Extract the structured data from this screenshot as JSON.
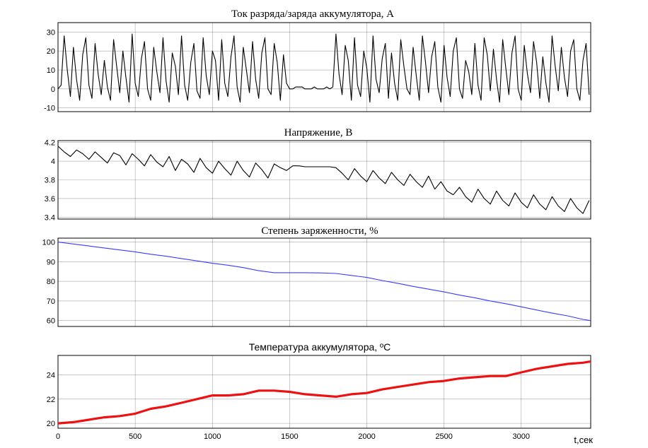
{
  "chart_data": [
    {
      "type": "line",
      "title": "Ток разряда/заряда аккумулятора, А",
      "ylim": [
        -12,
        35
      ],
      "yticks": [
        -10,
        0,
        10,
        20,
        30
      ],
      "xlim": [
        0,
        3450
      ],
      "color": "#000000",
      "series": [
        {
          "x": [
            0,
            20,
            40,
            60,
            80,
            100,
            120,
            140,
            160,
            180,
            200,
            220,
            240,
            260,
            280,
            300,
            320,
            340,
            360,
            380,
            400,
            420,
            440,
            460,
            480,
            500,
            520,
            540,
            560,
            580,
            600,
            620,
            640,
            660,
            680,
            700,
            720,
            740,
            760,
            780,
            800,
            820,
            840,
            860,
            880,
            900,
            920,
            940,
            960,
            980,
            1000,
            1020,
            1040,
            1060,
            1080,
            1100,
            1120,
            1140,
            1160,
            1180,
            1200,
            1220,
            1240,
            1260,
            1280,
            1300,
            1320,
            1340,
            1360,
            1380,
            1400,
            1420,
            1440,
            1460,
            1480,
            1500,
            1520,
            1540,
            1560,
            1580,
            1600,
            1620,
            1640,
            1660,
            1680,
            1700,
            1720,
            1740,
            1760,
            1780,
            1800,
            1820,
            1840,
            1860,
            1880,
            1900,
            1920,
            1940,
            1960,
            1980,
            2000,
            2020,
            2040,
            2060,
            2080,
            2100,
            2120,
            2140,
            2160,
            2180,
            2200,
            2220,
            2240,
            2260,
            2280,
            2300,
            2320,
            2340,
            2360,
            2380,
            2400,
            2420,
            2440,
            2460,
            2480,
            2500,
            2520,
            2540,
            2560,
            2580,
            2600,
            2620,
            2640,
            2660,
            2680,
            2700,
            2720,
            2740,
            2760,
            2780,
            2800,
            2820,
            2840,
            2860,
            2880,
            2900,
            2920,
            2940,
            2960,
            2980,
            3000,
            3020,
            3040,
            3060,
            3080,
            3100,
            3120,
            3140,
            3160,
            3180,
            3200,
            3220,
            3240,
            3260,
            3280,
            3300,
            3320,
            3340,
            3360,
            3380,
            3400,
            3420,
            3440
          ],
          "values": [
            0,
            2,
            28,
            10,
            -4,
            22,
            5,
            -6,
            18,
            27,
            2,
            -5,
            24,
            8,
            -3,
            15,
            1,
            -6,
            26,
            12,
            -2,
            20,
            6,
            -7,
            29,
            3,
            -4,
            16,
            25,
            0,
            -6,
            22,
            9,
            -2,
            27,
            4,
            -7,
            19,
            12,
            -3,
            28,
            2,
            -6,
            14,
            24,
            -1,
            -5,
            27,
            7,
            -3,
            20,
            15,
            -6,
            26,
            3,
            -4,
            17,
            28,
            1,
            -7,
            22,
            10,
            -2,
            25,
            5,
            -5,
            19,
            27,
            0,
            -3,
            24,
            14,
            -6,
            18,
            3,
            0,
            0,
            1,
            1,
            1,
            0,
            0,
            0,
            1,
            0,
            0,
            0,
            1,
            0,
            1,
            29,
            8,
            -3,
            23,
            15,
            -6,
            27,
            2,
            -4,
            20,
            11,
            -7,
            28,
            5,
            -2,
            16,
            24,
            -5,
            19,
            3,
            -6,
            26,
            12,
            0,
            -3,
            22,
            7,
            -6,
            28,
            14,
            -2,
            17,
            25,
            1,
            -7,
            23,
            6,
            -4,
            20,
            27,
            0,
            -5,
            15,
            9,
            -3,
            24,
            2,
            -6,
            27,
            18,
            -1,
            21,
            5,
            -7,
            26,
            11,
            -3,
            19,
            28,
            0,
            -6,
            23,
            8,
            -2,
            25,
            14,
            -5,
            17,
            3,
            -7,
            28,
            12,
            -1,
            22,
            6,
            -4,
            20,
            26,
            0,
            -6,
            15,
            24,
            -3
          ]
        }
      ]
    },
    {
      "type": "line",
      "title": "Напряжение, В",
      "ylim": [
        3.38,
        4.22
      ],
      "yticks": [
        3.4,
        3.6,
        3.8,
        4,
        4.2
      ],
      "xlim": [
        0,
        3450
      ],
      "color": "#000000",
      "series": [
        {
          "x": [
            0,
            40,
            80,
            120,
            160,
            200,
            240,
            280,
            320,
            360,
            400,
            440,
            480,
            520,
            560,
            600,
            640,
            680,
            720,
            760,
            800,
            840,
            880,
            920,
            960,
            1000,
            1040,
            1080,
            1120,
            1160,
            1200,
            1240,
            1280,
            1320,
            1360,
            1400,
            1440,
            1480,
            1520,
            1560,
            1600,
            1640,
            1680,
            1720,
            1760,
            1800,
            1840,
            1880,
            1920,
            1960,
            2000,
            2040,
            2080,
            2120,
            2160,
            2200,
            2240,
            2280,
            2320,
            2360,
            2400,
            2440,
            2480,
            2520,
            2560,
            2600,
            2640,
            2680,
            2720,
            2760,
            2800,
            2840,
            2880,
            2920,
            2960,
            3000,
            3040,
            3080,
            3120,
            3160,
            3200,
            3240,
            3280,
            3320,
            3360,
            3400,
            3440
          ],
          "values": [
            4.16,
            4.1,
            4.05,
            4.12,
            4.08,
            4.02,
            4.1,
            4.04,
            3.98,
            4.09,
            4.06,
            3.96,
            4.08,
            4.02,
            3.95,
            4.07,
            3.99,
            3.94,
            4.05,
            3.9,
            4.02,
            3.97,
            3.88,
            4.03,
            3.93,
            3.87,
            4.0,
            3.92,
            3.85,
            4.0,
            3.9,
            3.83,
            3.98,
            3.91,
            3.82,
            3.97,
            3.93,
            3.9,
            3.95,
            3.95,
            3.94,
            3.94,
            3.94,
            3.94,
            3.94,
            3.93,
            3.87,
            3.8,
            3.92,
            3.84,
            3.78,
            3.9,
            3.82,
            3.76,
            3.88,
            3.8,
            3.74,
            3.86,
            3.78,
            3.72,
            3.84,
            3.7,
            3.78,
            3.68,
            3.64,
            3.72,
            3.62,
            3.56,
            3.7,
            3.6,
            3.54,
            3.68,
            3.58,
            3.52,
            3.66,
            3.56,
            3.5,
            3.64,
            3.54,
            3.48,
            3.62,
            3.52,
            3.46,
            3.6,
            3.5,
            3.44,
            3.58
          ]
        }
      ]
    },
    {
      "type": "line",
      "title": "Степень заряженности, %",
      "ylim": [
        57,
        102
      ],
      "yticks": [
        60,
        70,
        80,
        90,
        100
      ],
      "xlim": [
        0,
        3450
      ],
      "color": "#3a3aff",
      "series": [
        {
          "x": [
            0,
            100,
            200,
            300,
            400,
            500,
            600,
            700,
            800,
            900,
            1000,
            1100,
            1200,
            1300,
            1400,
            1500,
            1600,
            1700,
            1800,
            1900,
            2000,
            2100,
            2200,
            2300,
            2400,
            2500,
            2600,
            2700,
            2800,
            2900,
            3000,
            3100,
            3200,
            3300,
            3400,
            3450
          ],
          "values": [
            100,
            99,
            98,
            97,
            96,
            95,
            93.8,
            92.8,
            91.6,
            90.4,
            89.2,
            88.2,
            87,
            85.4,
            84.4,
            84.4,
            84.4,
            84.3,
            84,
            83,
            82,
            80.4,
            79,
            77.4,
            76,
            74.6,
            73,
            71.6,
            70,
            68.6,
            67,
            65.4,
            63.8,
            62.4,
            60.6,
            60
          ]
        }
      ]
    },
    {
      "type": "line",
      "title": "Температура аккумулятора, ºC",
      "ylim": [
        19.6,
        25.6
      ],
      "yticks": [
        20,
        22,
        24
      ],
      "xlim": [
        0,
        3450
      ],
      "color": "#ee1111",
      "xticks": [
        0,
        500,
        1000,
        1500,
        2000,
        2500,
        3000
      ],
      "xlabel": "t,сек",
      "series": [
        {
          "x": [
            0,
            100,
            200,
            300,
            400,
            500,
            600,
            700,
            800,
            900,
            1000,
            1100,
            1200,
            1300,
            1400,
            1500,
            1600,
            1700,
            1800,
            1900,
            2000,
            2100,
            2200,
            2300,
            2400,
            2500,
            2600,
            2700,
            2800,
            2900,
            3000,
            3100,
            3200,
            3300,
            3400,
            3450
          ],
          "values": [
            20.0,
            20.1,
            20.3,
            20.5,
            20.6,
            20.8,
            21.2,
            21.4,
            21.7,
            22.0,
            22.3,
            22.3,
            22.4,
            22.7,
            22.7,
            22.6,
            22.4,
            22.3,
            22.2,
            22.4,
            22.5,
            22.8,
            23.0,
            23.2,
            23.4,
            23.5,
            23.7,
            23.8,
            23.9,
            23.9,
            24.2,
            24.5,
            24.7,
            24.9,
            25.0,
            25.1
          ]
        }
      ]
    }
  ]
}
